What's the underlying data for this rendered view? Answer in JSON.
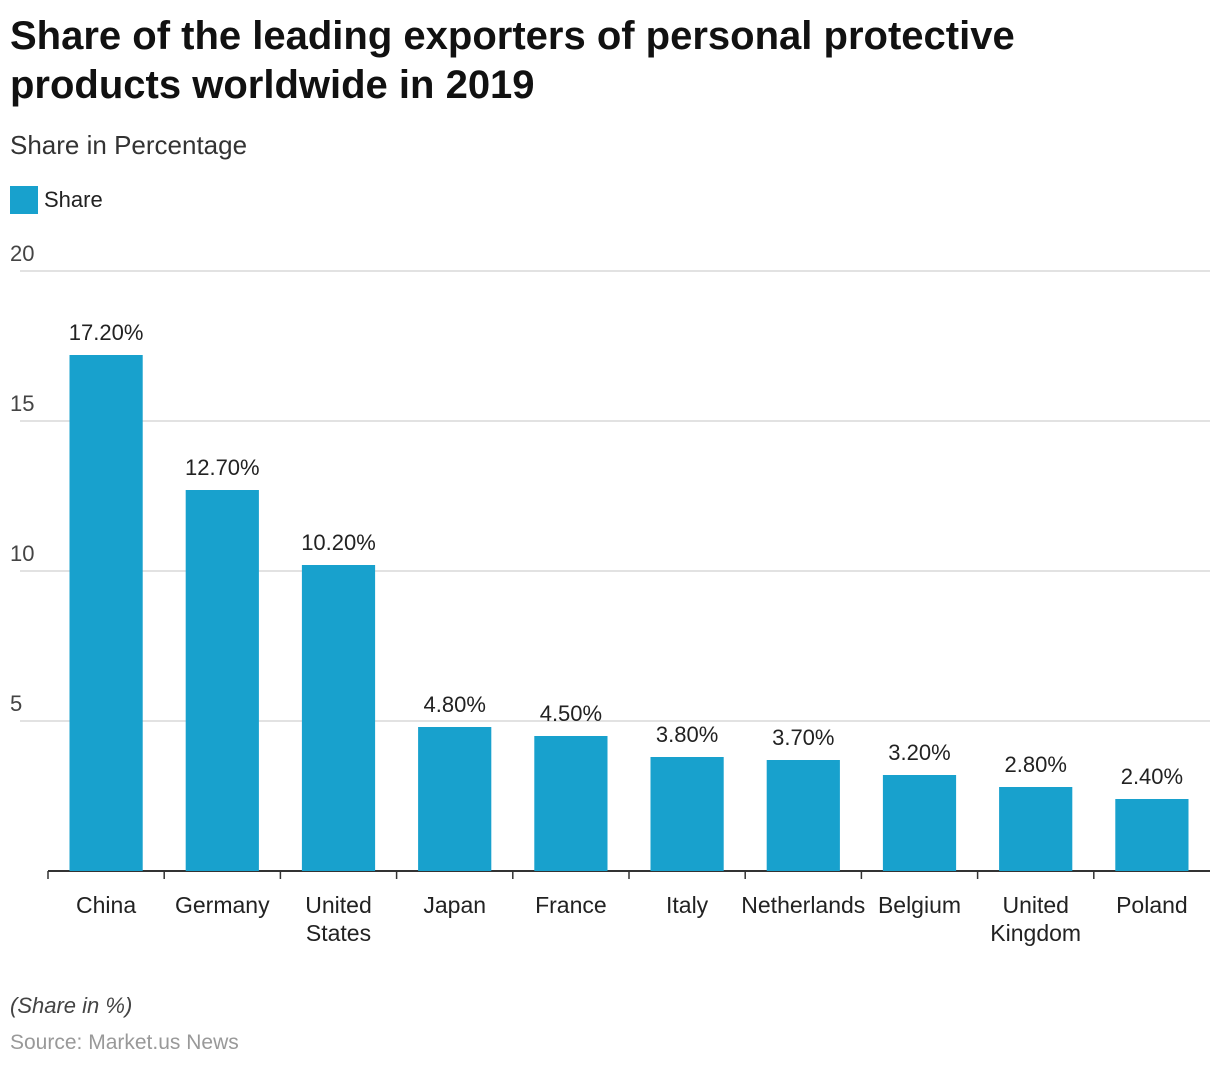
{
  "title": "Share of the leading exporters of personal protective products worldwide in 2019",
  "subtitle": "Share in Percentage",
  "footnote": "(Share in %)",
  "source": "Source: Market.us News",
  "colors": {
    "bar": "#18a1cd",
    "grid": "#d9d9d9",
    "axis": "#333333"
  },
  "chart_data": {
    "type": "bar",
    "title": "Share of the leading exporters of personal protective products worldwide in 2019",
    "subtitle": "Share in Percentage",
    "xlabel": "",
    "ylabel": "",
    "ylim": [
      0,
      20
    ],
    "yticks": [
      5,
      10,
      15,
      20
    ],
    "grid": true,
    "legend_placement": "top-left",
    "categories": [
      [
        "China"
      ],
      [
        "Germany"
      ],
      [
        "United",
        "States"
      ],
      [
        "Japan"
      ],
      [
        "France"
      ],
      [
        "Italy"
      ],
      [
        "Netherlands"
      ],
      [
        "Belgium"
      ],
      [
        "United",
        "Kingdom"
      ],
      [
        "Poland"
      ]
    ],
    "series": [
      {
        "name": "Share",
        "values": [
          17.2,
          12.7,
          10.2,
          4.8,
          4.5,
          3.8,
          3.7,
          3.2,
          2.8,
          2.4
        ],
        "labels": [
          "17.20%",
          "12.70%",
          "10.20%",
          "4.80%",
          "4.50%",
          "3.80%",
          "3.70%",
          "3.20%",
          "2.80%",
          "2.40%"
        ]
      }
    ]
  }
}
